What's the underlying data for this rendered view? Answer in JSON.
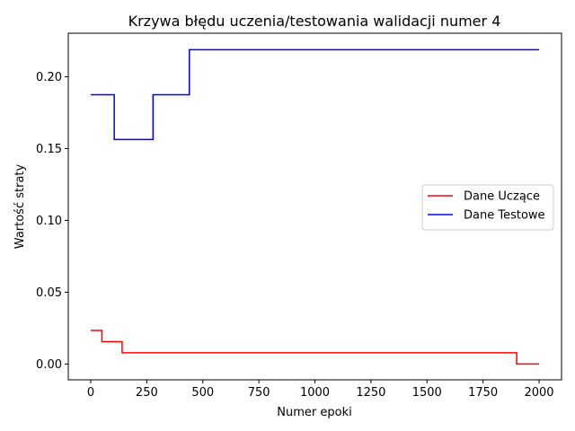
{
  "chart_data": {
    "type": "line",
    "title": "Krzywa błędu uczenia/testowania walidacji numer 4",
    "xlabel": "Numer epoki",
    "ylabel": "Wartość straty",
    "xlim": [
      -100,
      2100
    ],
    "ylim": [
      -0.011,
      0.2303
    ],
    "xticks": [
      0,
      250,
      500,
      750,
      1000,
      1250,
      1500,
      1750,
      2000
    ],
    "yticks": [
      0.0,
      0.05,
      0.1,
      0.15,
      0.2
    ],
    "ytick_labels": [
      "0.00",
      "0.05",
      "0.10",
      "0.15",
      "0.20"
    ],
    "grid": false,
    "legend_position": "center-right",
    "series": [
      {
        "name": "Dane Uczące",
        "color": "#ff0000",
        "step_points": [
          [
            0,
            0.0234
          ],
          [
            50,
            0.0234
          ],
          [
            50,
            0.0156
          ],
          [
            140,
            0.0156
          ],
          [
            140,
            0.0078
          ],
          [
            1900,
            0.0078
          ],
          [
            1900,
            0.0
          ],
          [
            2000,
            0.0
          ]
        ]
      },
      {
        "name": "Dane Testowe",
        "color": "#0000ff",
        "step_points": [
          [
            0,
            0.1875
          ],
          [
            105,
            0.1875
          ],
          [
            105,
            0.1563
          ],
          [
            278,
            0.1563
          ],
          [
            278,
            0.1875
          ],
          [
            440,
            0.1875
          ],
          [
            440,
            0.2188
          ],
          [
            2000,
            0.2188
          ]
        ]
      }
    ]
  }
}
